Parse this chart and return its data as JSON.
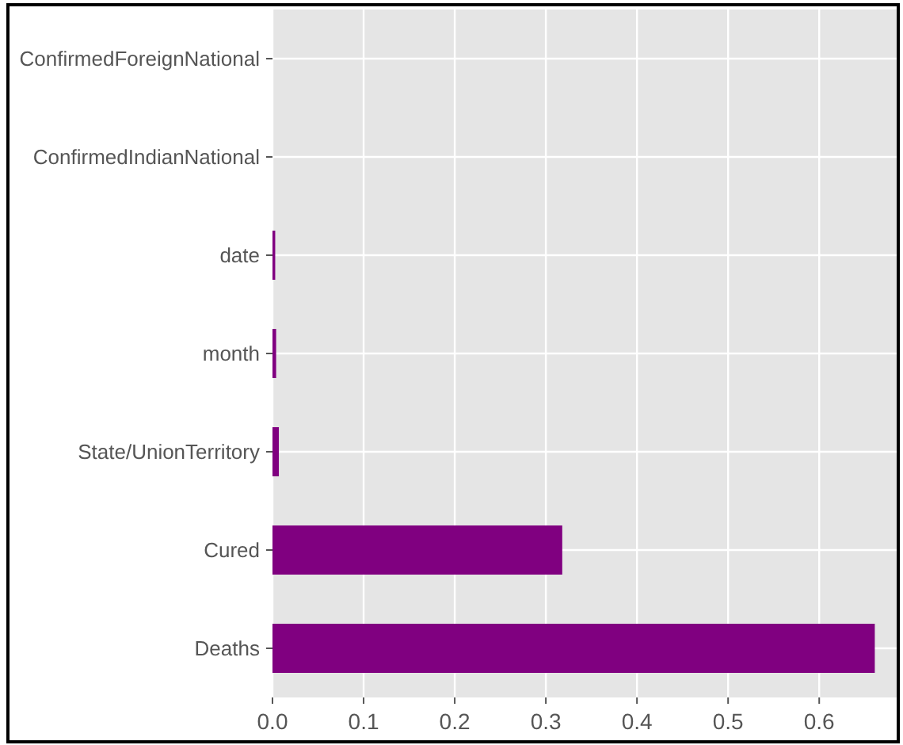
{
  "chart_data": {
    "type": "bar",
    "orientation": "horizontal",
    "categories": [
      "ConfirmedForeignNational",
      "ConfirmedIndianNational",
      "date",
      "month",
      "State/UnionTerritory",
      "Cured",
      "Deaths"
    ],
    "values": [
      0,
      0,
      0.003,
      0.004,
      0.007,
      0.318,
      0.661
    ],
    "color": "#800080",
    "xlim": [
      0,
      0.685
    ],
    "xticks": [
      {
        "value": 0,
        "label": "0.0"
      },
      0.1,
      0.2,
      0.3,
      0.4,
      0.5,
      0.6
    ],
    "grid": true
  }
}
